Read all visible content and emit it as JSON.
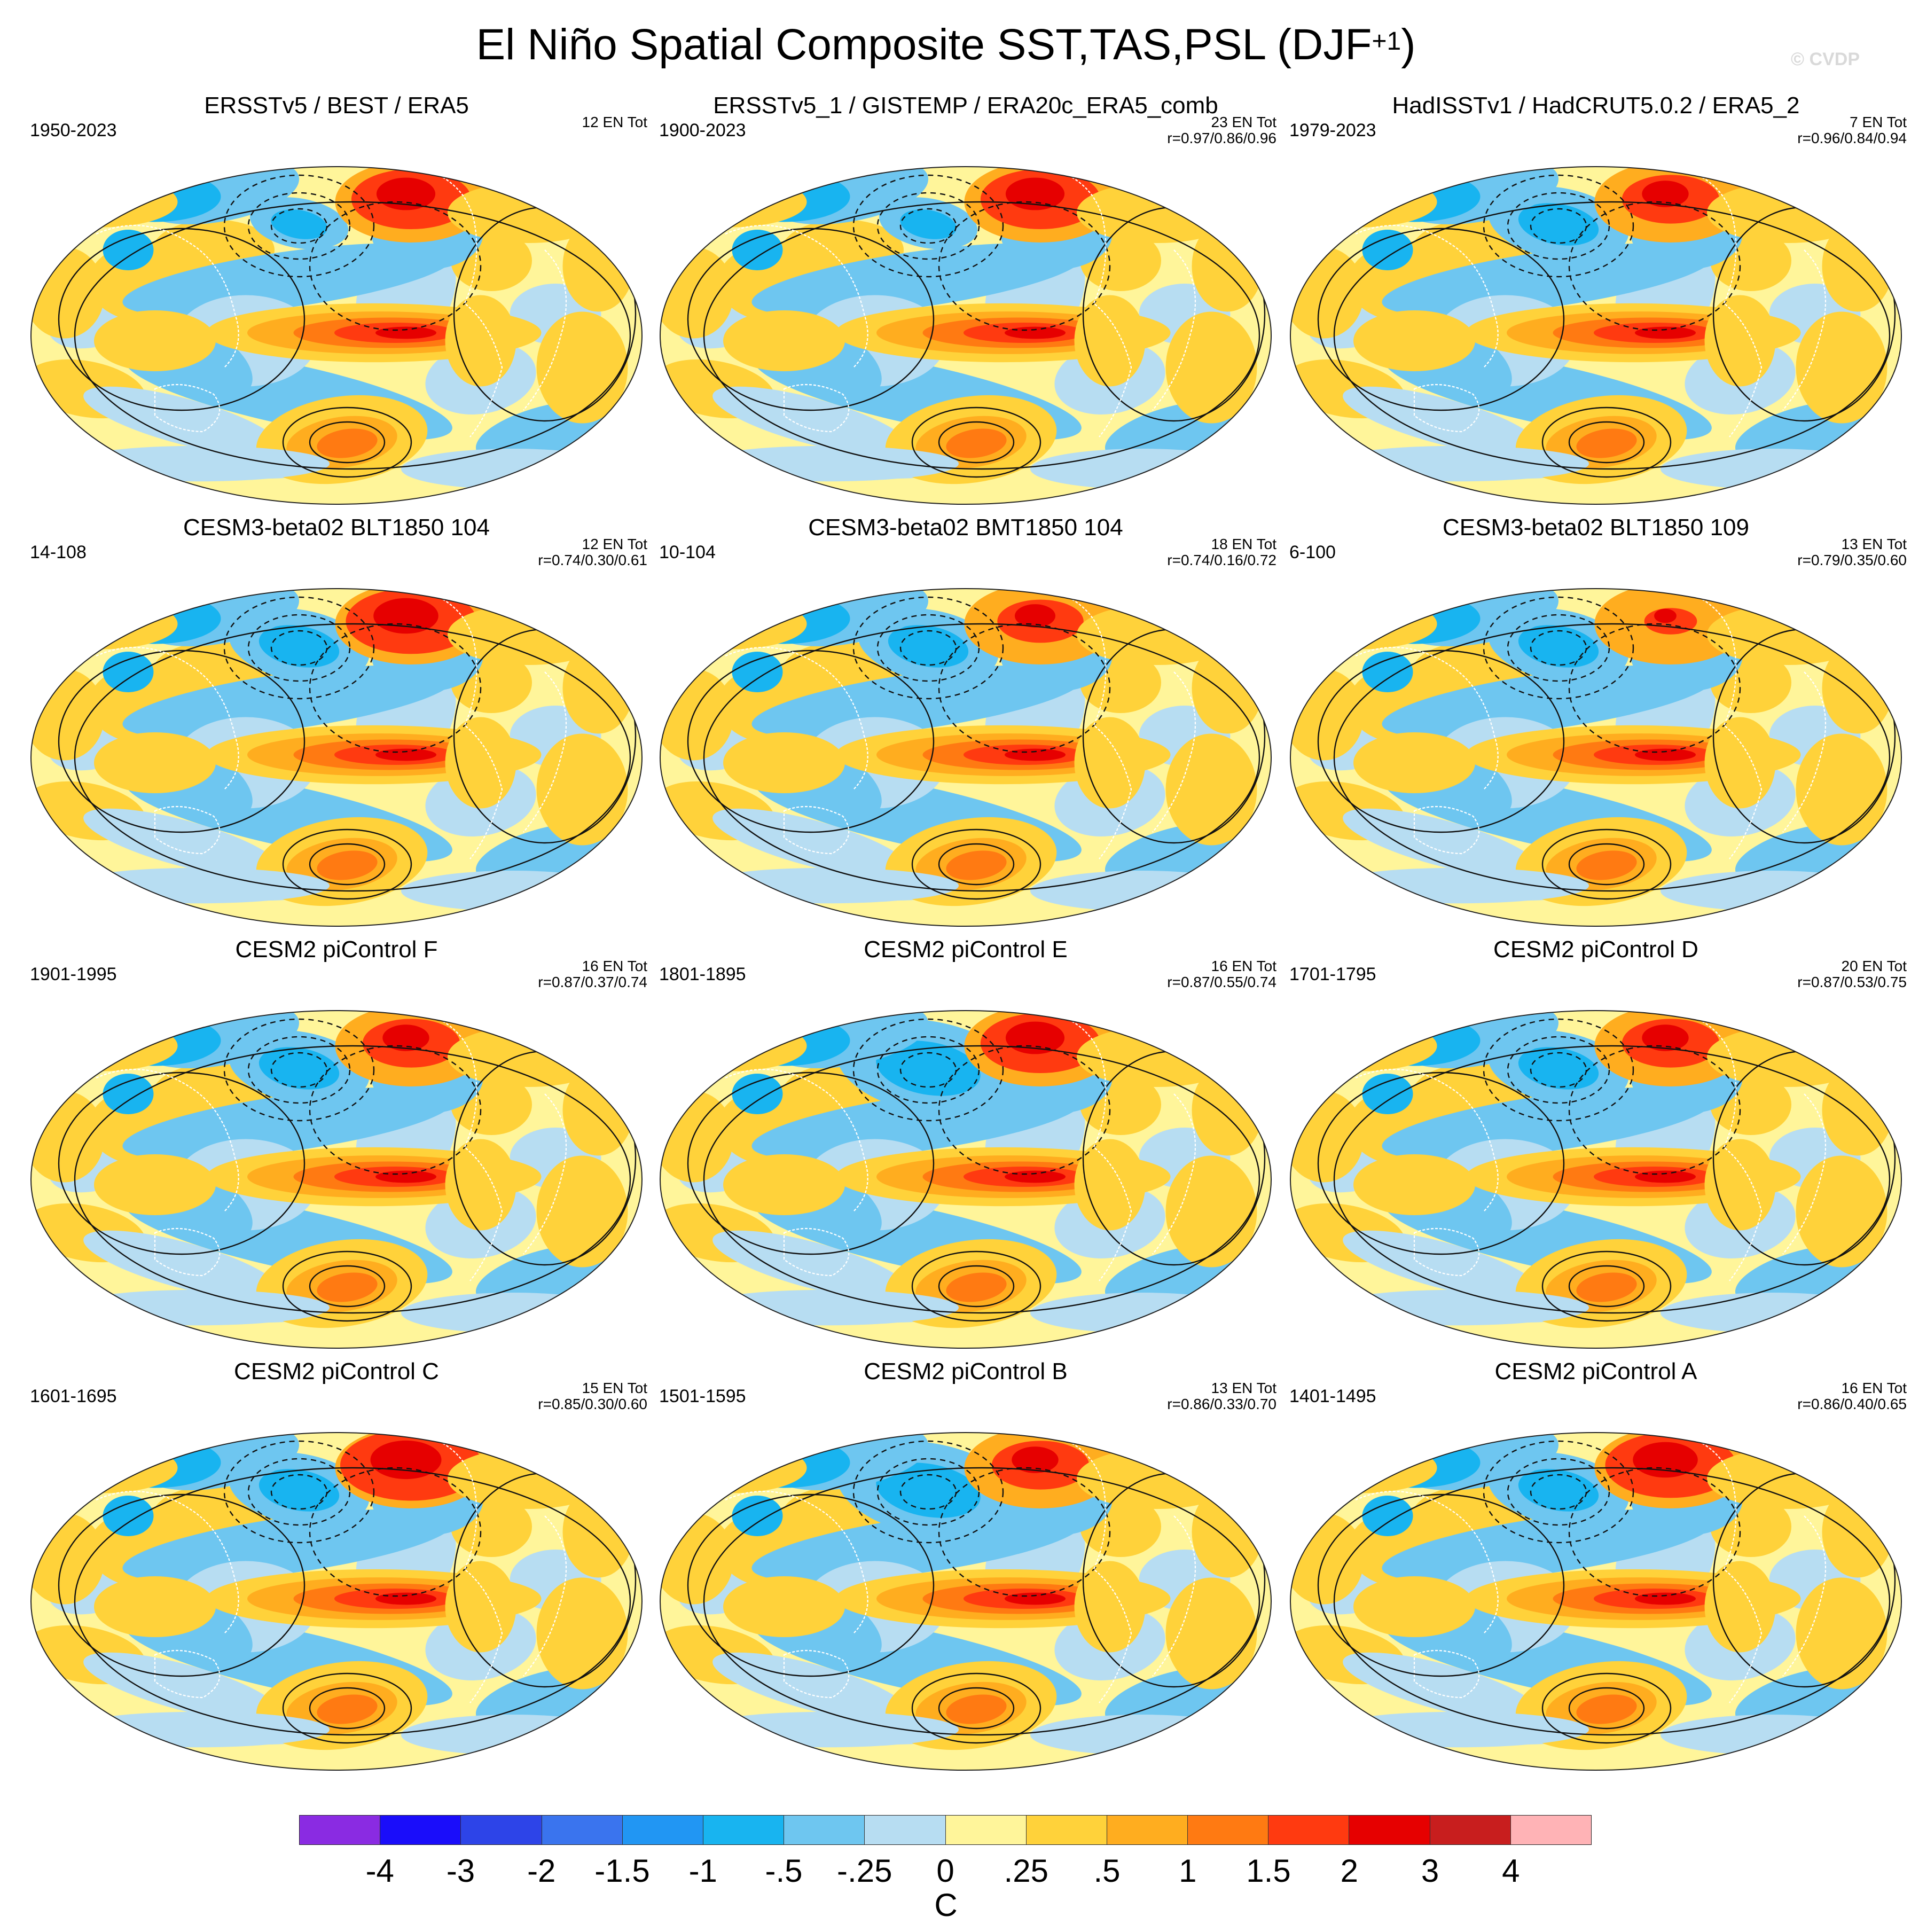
{
  "figure": {
    "title": "El Niño Spatial Composite SST,TAS,PSL (DJF",
    "title_sup": "+1",
    "title_close": ")",
    "watermark": "© CVDP"
  },
  "panels": [
    {
      "title": "ERSSTv5 / BEST / ERA5",
      "years": "1950-2023",
      "count": "12 EN Tot",
      "corr": "",
      "cold": "pole",
      "hotNA": 0.8
    },
    {
      "title": "ERSSTv5_1 / GISTEMP / ERA20c_ERA5_comb",
      "years": "1900-2023",
      "count": "23 EN Tot",
      "corr": "r=0.97/0.86/0.96",
      "cold": "pole",
      "hotNA": 0.8
    },
    {
      "title": "HadISSTv1 / HadCRUT5.0.2 / ERA5_2",
      "years": "1979-2023",
      "count": "7 EN Tot",
      "corr": "r=0.96/0.84/0.94",
      "cold": "mid",
      "hotNA": 0.6
    },
    {
      "title": "CESM3-beta02 BLT1850 104",
      "years": "14-108",
      "count": "12 EN Tot",
      "corr": "r=0.74/0.30/0.61",
      "cold": "mid",
      "hotNA": 0.9
    },
    {
      "title": "CESM3-beta02 BMT1850 104",
      "years": "10-104",
      "count": "18 EN Tot",
      "corr": "r=0.74/0.16/0.72",
      "cold": "mid",
      "hotNA": 0.5
    },
    {
      "title": "CESM3-beta02 BLT1850 109",
      "years": "6-100",
      "count": "13 EN Tot",
      "corr": "r=0.79/0.35/0.60",
      "cold": "mid",
      "hotNA": 0.2
    },
    {
      "title": "CESM2 piControl F",
      "years": "1901-1995",
      "count": "16 EN Tot",
      "corr": "r=0.87/0.37/0.74",
      "cold": "mid",
      "hotNA": 0.6
    },
    {
      "title": "CESM2 piControl E",
      "years": "1801-1895",
      "count": "16 EN Tot",
      "corr": "r=0.87/0.55/0.74",
      "cold": "big",
      "hotNA": 0.8
    },
    {
      "title": "CESM2 piControl D",
      "years": "1701-1795",
      "count": "20 EN Tot",
      "corr": "r=0.87/0.53/0.75",
      "cold": "mid",
      "hotNA": 0.6
    },
    {
      "title": "CESM2 piControl C",
      "years": "1601-1695",
      "count": "15 EN Tot",
      "corr": "r=0.85/0.30/0.60",
      "cold": "mid",
      "hotNA": 1.0
    },
    {
      "title": "CESM2 piControl B",
      "years": "1501-1595",
      "count": "13 EN Tot",
      "corr": "r=0.86/0.33/0.70",
      "cold": "big",
      "hotNA": 0.6
    },
    {
      "title": "CESM2 piControl A",
      "years": "1401-1495",
      "count": "16 EN Tot",
      "corr": "r=0.86/0.40/0.65",
      "cold": "mid",
      "hotNA": 0.9
    }
  ],
  "colorbar": {
    "unit": "C",
    "ticks": [
      "-4",
      "-3",
      "-2",
      "-1.5",
      "-1",
      "-.5",
      "-.25",
      "0",
      ".25",
      ".5",
      "1",
      "1.5",
      "2",
      "3",
      "4"
    ],
    "colors": [
      "#8a2be2",
      "#1a0dfa",
      "#2d44e8",
      "#3a74ee",
      "#2196f3",
      "#18b4f0",
      "#6ec6f0",
      "#b7ddf2",
      "#fff59a",
      "#ffd23a",
      "#ffad1f",
      "#ff7a12",
      "#ff3a10",
      "#e60000",
      "#c81e1e",
      "#ffb3b6"
    ]
  }
}
